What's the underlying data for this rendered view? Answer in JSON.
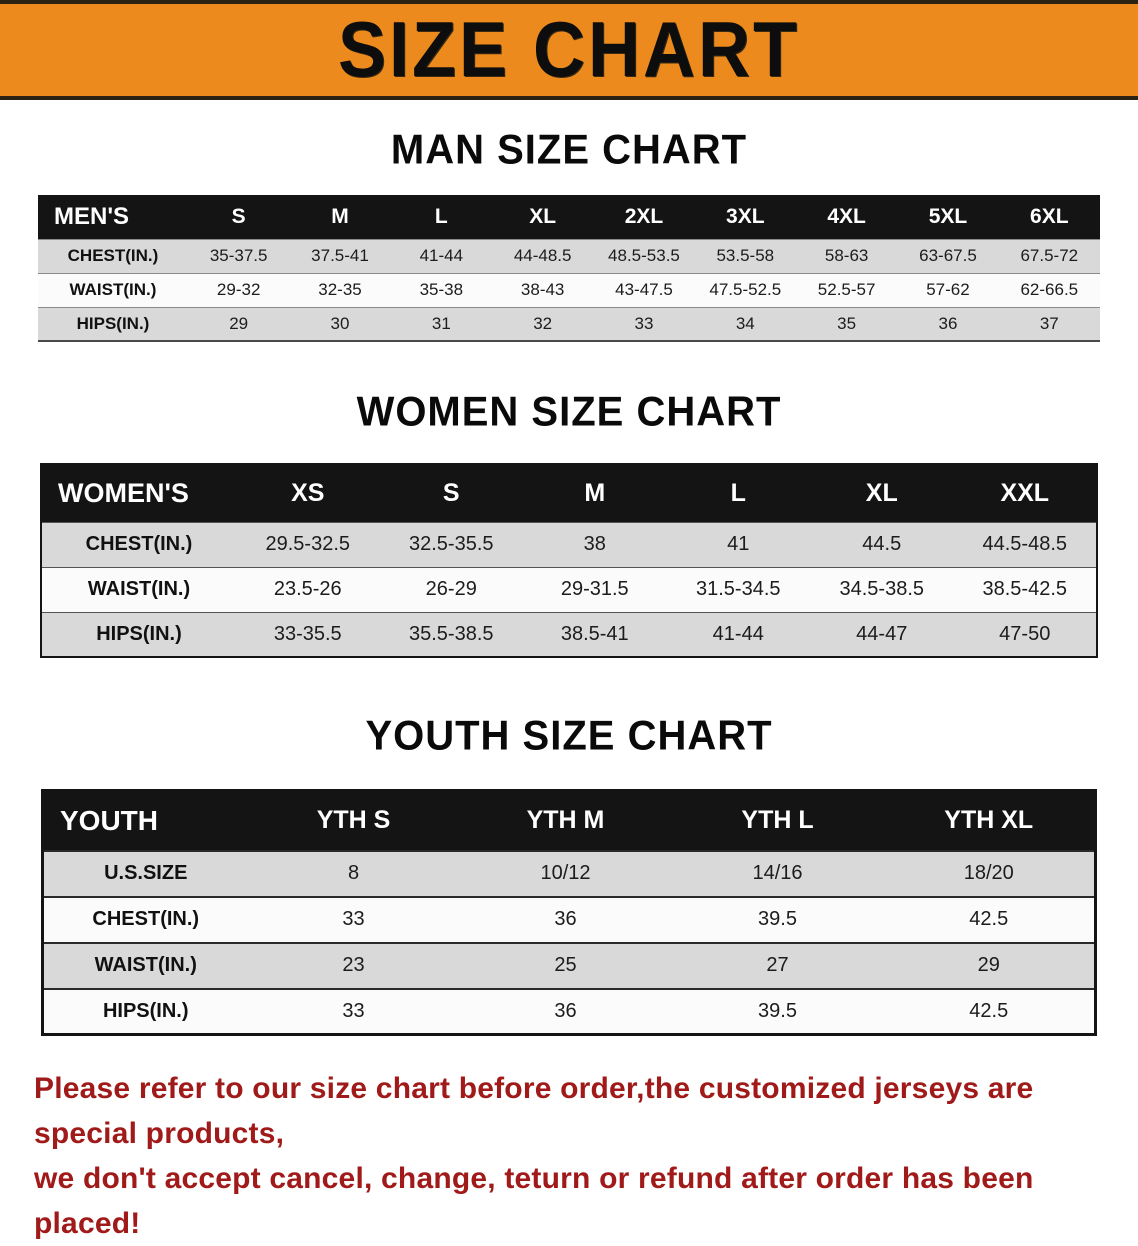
{
  "banner": {
    "title": "SIZE CHART"
  },
  "sections": [
    {
      "heading": "MAN SIZE CHART",
      "table": {
        "corner_label": "MEN'S",
        "columns": [
          "S",
          "M",
          "L",
          "XL",
          "2XL",
          "3XL",
          "4XL",
          "5XL",
          "6XL"
        ],
        "rows": [
          {
            "label": "CHEST(IN.)",
            "values": [
              "35-37.5",
              "37.5-41",
              "41-44",
              "44-48.5",
              "48.5-53.5",
              "53.5-58",
              "58-63",
              "63-67.5",
              "67.5-72"
            ]
          },
          {
            "label": "WAIST(IN.)",
            "values": [
              "29-32",
              "32-35",
              "35-38",
              "38-43",
              "43-47.5",
              "47.5-52.5",
              "52.5-57",
              "57-62",
              "62-66.5"
            ]
          },
          {
            "label": "HIPS(IN.)",
            "values": [
              "29",
              "30",
              "31",
              "32",
              "33",
              "34",
              "35",
              "36",
              "37"
            ]
          }
        ]
      }
    },
    {
      "heading": "WOMEN SIZE CHART",
      "table": {
        "corner_label": "WOMEN'S",
        "columns": [
          "XS",
          "S",
          "M",
          "L",
          "XL",
          "XXL"
        ],
        "rows": [
          {
            "label": "CHEST(IN.)",
            "values": [
              "29.5-32.5",
              "32.5-35.5",
              "38",
              "41",
              "44.5",
              "44.5-48.5"
            ]
          },
          {
            "label": "WAIST(IN.)",
            "values": [
              "23.5-26",
              "26-29",
              "29-31.5",
              "31.5-34.5",
              "34.5-38.5",
              "38.5-42.5"
            ]
          },
          {
            "label": "HIPS(IN.)",
            "values": [
              "33-35.5",
              "35.5-38.5",
              "38.5-41",
              "41-44",
              "44-47",
              "47-50"
            ]
          }
        ]
      }
    },
    {
      "heading": "YOUTH SIZE CHART",
      "table": {
        "corner_label": "YOUTH",
        "columns": [
          "YTH S",
          "YTH M",
          "YTH L",
          "YTH XL"
        ],
        "rows": [
          {
            "label": "U.S.SIZE",
            "values": [
              "8",
              "10/12",
              "14/16",
              "18/20"
            ]
          },
          {
            "label": "CHEST(IN.)",
            "values": [
              "33",
              "36",
              "39.5",
              "42.5"
            ]
          },
          {
            "label": "WAIST(IN.)",
            "values": [
              "23",
              "25",
              "27",
              "29"
            ]
          },
          {
            "label": "HIPS(IN.)",
            "values": [
              "33",
              "36",
              "39.5",
              "42.5"
            ]
          }
        ]
      }
    }
  ],
  "disclaimer": {
    "line1": "Please refer to our size chart before order,the customized jerseys are special products,",
    "line2": "we don't accept cancel, change, teturn or refund after order has been placed!"
  },
  "colors": {
    "accent_orange": "#EC8A1E",
    "header_black": "#141414",
    "row_gray": "#d9d9d9",
    "disclaimer_red": "#A11A1A"
  }
}
